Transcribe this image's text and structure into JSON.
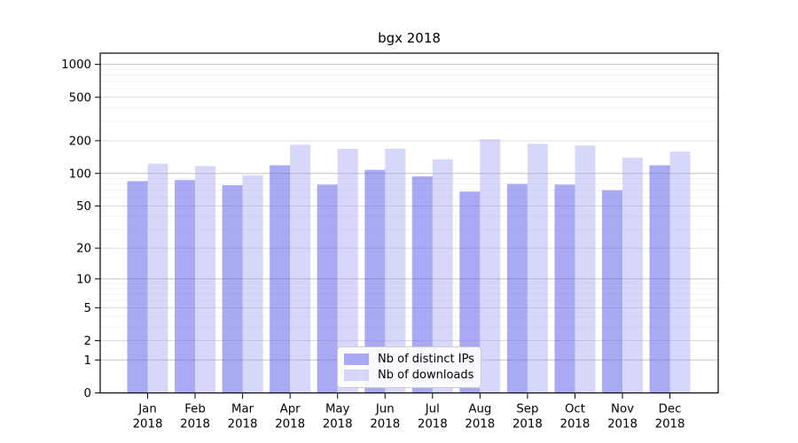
{
  "chart_data": {
    "type": "bar",
    "title": "bgx 2018",
    "categories": [
      "Jan 2018",
      "Feb 2018",
      "Mar 2018",
      "Apr 2018",
      "May 2018",
      "Jun 2018",
      "Jul 2018",
      "Aug 2018",
      "Sep 2018",
      "Oct 2018",
      "Nov 2018",
      "Dec 2018"
    ],
    "series": [
      {
        "name": "Nb of distinct IPs",
        "values": [
          85,
          87,
          78,
          119,
          79,
          108,
          94,
          68,
          80,
          79,
          70,
          119
        ]
      },
      {
        "name": "Nb of downloads",
        "values": [
          123,
          117,
          96,
          184,
          168,
          169,
          135,
          206,
          187,
          181,
          140,
          159
        ]
      }
    ],
    "yscale": "log1p",
    "yticks": [
      0,
      1,
      2,
      5,
      10,
      20,
      50,
      100,
      200,
      500,
      1000
    ],
    "ylim": [
      0,
      1270
    ],
    "xlabel": "",
    "ylabel": "",
    "grid": "on",
    "legend_position": "lower center"
  },
  "colors": {
    "bar_distinct_ips": "rgba(100,100,235,0.55)",
    "bar_downloads": "rgba(160,160,240,0.42)",
    "bar_distinct_ips_hex": "#aaaaf0",
    "bar_downloads_hex": "#d9d9f8",
    "gridline_power": "#c2c2c2",
    "gridline_labeled": "#dcdcdc",
    "gridline_minor": "#efefef",
    "axis": "#000000",
    "background": "#ffffff",
    "legend_border": "#cccccc"
  }
}
